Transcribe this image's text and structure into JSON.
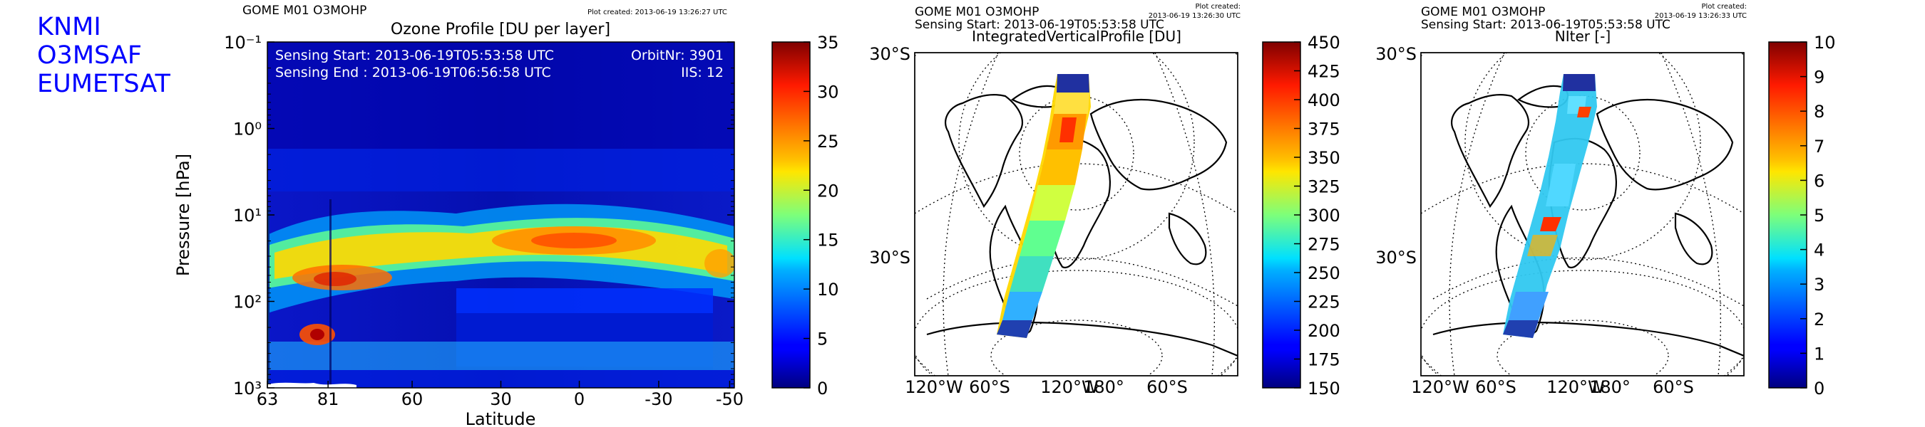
{
  "brand": {
    "lines": [
      "KNMI",
      "O3MSAF",
      "EUMETSAT"
    ]
  },
  "colors": {
    "brand": "#0000ff",
    "colormap": "jet"
  },
  "panels": [
    {
      "header": "GOME M01 O3MOHP",
      "plot_created": "Plot created: 2013-06-19 13:26:27 UTC",
      "title": "Ozone Profile [DU per layer]",
      "info": {
        "sensing_start": "Sensing Start: 2013-06-19T05:53:58 UTC",
        "sensing_end": "Sensing End  : 2013-06-19T06:56:58 UTC",
        "orbit": "OrbitNr: 3901",
        "iis": "IIS: 12"
      }
    },
    {
      "header": "GOME M01 O3MOHP",
      "plot_created_label": "Plot created:",
      "plot_created_time": "2013-06-19 13:26:30 UTC",
      "subheader": "Sensing Start: 2013-06-19T05:53:58 UTC",
      "title": "IntegratedVerticalProfile [DU]"
    },
    {
      "header": "GOME M01 O3MOHP",
      "plot_created_label": "Plot created:",
      "plot_created_time": "2013-06-19 13:26:33 UTC",
      "subheader": "Sensing Start: 2013-06-19T05:53:58 UTC",
      "title": "NIter [-]"
    }
  ],
  "chart_data": [
    {
      "type": "heatmap",
      "title": "Ozone Profile [DU per layer]",
      "xlabel": "Latitude",
      "ylabel": "Pressure [hPa]",
      "x_tick_labels": [
        "63",
        "81",
        "60",
        "30",
        "0",
        "-30",
        "-50"
      ],
      "y_scale": "log",
      "ylim": [
        1000,
        0.1
      ],
      "y_ticks": [
        0.1,
        1,
        10,
        100,
        1000
      ],
      "colorbar": {
        "min": 0,
        "max": 35,
        "ticks": [
          0,
          5,
          10,
          15,
          20,
          25,
          30,
          35
        ]
      },
      "features": {
        "ozone_layer_max_DU": 30,
        "ozone_layer_pressure_hPa": [
          10,
          50
        ]
      }
    },
    {
      "type": "heatmap",
      "subtype": "map",
      "title": "IntegratedVerticalProfile [DU]",
      "lat_labels": [
        "30°S",
        "30°S"
      ],
      "lon_labels": [
        "120°W",
        "60°S",
        "120°W",
        "180°",
        "60°S"
      ],
      "colorbar": {
        "min": 150,
        "max": 450,
        "ticks": [
          150,
          175,
          200,
          225,
          250,
          275,
          300,
          325,
          350,
          375,
          400,
          425,
          450
        ]
      }
    },
    {
      "type": "heatmap",
      "subtype": "map",
      "title": "NIter [-]",
      "lat_labels": [
        "30°S",
        "30°S"
      ],
      "lon_labels": [
        "120°W",
        "60°S",
        "120°W",
        "180°",
        "60°S"
      ],
      "colorbar": {
        "min": 0,
        "max": 10,
        "ticks": [
          0,
          1,
          2,
          3,
          4,
          5,
          6,
          7,
          8,
          9,
          10
        ]
      }
    }
  ]
}
